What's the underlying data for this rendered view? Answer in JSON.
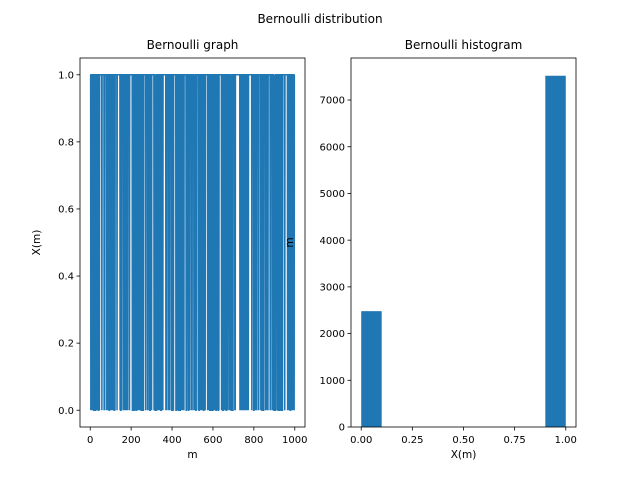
{
  "suptitle": "Bernoulli distribution",
  "chart_data": [
    {
      "type": "line",
      "title": "Bernoulli graph",
      "xlabel": "m",
      "ylabel": "X(m)",
      "series_description": "Bernoulli samples X(m) in {0,1} for m = 0..999, alternating densely between 0 and 1",
      "sample_count": 1000,
      "x_values_range": [
        0,
        999
      ],
      "y_values_set": [
        0,
        1
      ],
      "xlim": [
        -50,
        1050
      ],
      "ylim": [
        -0.05,
        1.05
      ],
      "xticks": [
        0,
        200,
        400,
        600,
        800,
        1000
      ],
      "yticks": [
        0.0,
        0.2,
        0.4,
        0.6,
        0.8,
        1.0
      ],
      "xtick_labels": [
        "0",
        "200",
        "400",
        "600",
        "800",
        "1000"
      ],
      "ytick_labels": [
        "0.0",
        "0.2",
        "0.4",
        "0.6",
        "0.8",
        "1.0"
      ],
      "color": "#1f77b4"
    },
    {
      "type": "bar",
      "title": "Bernoulli histogram",
      "xlabel": "X(m)",
      "ylabel": "m",
      "bins": [
        {
          "x0": 0.0,
          "x1": 0.1,
          "count": 2480
        },
        {
          "x0": 0.9,
          "x1": 1.0,
          "count": 7520
        }
      ],
      "xlim": [
        -0.05,
        1.05
      ],
      "ylim": [
        0,
        7900
      ],
      "xticks": [
        0.0,
        0.25,
        0.5,
        0.75,
        1.0
      ],
      "yticks": [
        0,
        1000,
        2000,
        3000,
        4000,
        5000,
        6000,
        7000
      ],
      "xtick_labels": [
        "0.00",
        "0.25",
        "0.50",
        "0.75",
        "1.00"
      ],
      "ytick_labels": [
        "0",
        "1000",
        "2000",
        "3000",
        "4000",
        "5000",
        "6000",
        "7000"
      ],
      "color": "#1f77b4"
    }
  ]
}
